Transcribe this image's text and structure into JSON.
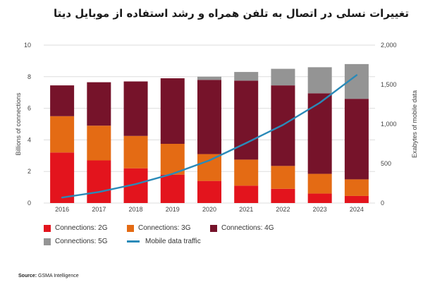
{
  "title": "تغییرات نسلی در اتصال به تلفن همراه و رشد استفاده از موبایل دیتا",
  "source": {
    "label": "Source:",
    "text": "GSMA Intelligence"
  },
  "colors": {
    "2g": "#e3141d",
    "3g": "#e46b14",
    "4g": "#76132a",
    "5g": "#949494",
    "traffic": "#2a8ab8",
    "grid": "#dddddd"
  },
  "chart_data": {
    "type": "bar",
    "stacked": true,
    "categories": [
      "2016",
      "2017",
      "2018",
      "2019",
      "2020",
      "2021",
      "2022",
      "2023",
      "2024"
    ],
    "series": [
      {
        "name": "Connections: 2G",
        "axis": "left",
        "values": [
          3.2,
          2.7,
          2.2,
          1.8,
          1.4,
          1.1,
          0.9,
          0.6,
          0.45
        ]
      },
      {
        "name": "Connections: 3G",
        "axis": "left",
        "values": [
          2.3,
          2.2,
          2.05,
          1.95,
          1.7,
          1.65,
          1.45,
          1.25,
          1.05
        ]
      },
      {
        "name": "Connections: 4G",
        "axis": "left",
        "values": [
          1.95,
          2.75,
          3.45,
          4.15,
          4.7,
          5.0,
          5.1,
          5.1,
          5.1
        ]
      },
      {
        "name": "Connections: 5G",
        "axis": "left",
        "values": [
          0,
          0,
          0,
          0,
          0.2,
          0.55,
          1.05,
          1.65,
          2.2
        ]
      },
      {
        "name": "Mobile data traffic",
        "type": "line",
        "axis": "right",
        "values": [
          70,
          140,
          240,
          370,
          540,
          760,
          990,
          1270,
          1620
        ]
      }
    ],
    "ylabel": "Billions of connections",
    "y2label": "Exabytes of mobile data",
    "ylim": [
      0,
      10
    ],
    "y2lim": [
      0,
      2000
    ],
    "yticks": [
      "0",
      "2",
      "4",
      "6",
      "8",
      "10"
    ],
    "y2ticks": [
      "0",
      "500",
      "1,000",
      "1,500",
      "2,000"
    ],
    "grid": true,
    "legend_position": "bottom-left"
  }
}
